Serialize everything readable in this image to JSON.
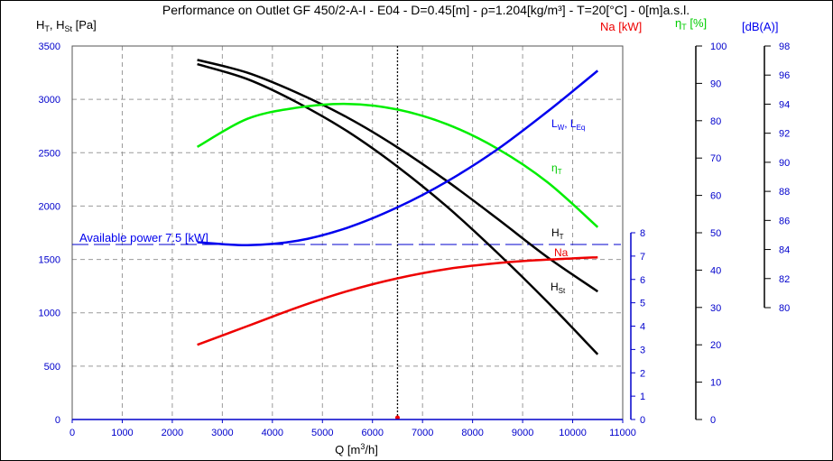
{
  "chart_data": {
    "type": "line",
    "title": "Performance on Outlet GF 450/2-A-I - E04 - D=0.45[m] - ρ=1.204[kg/m³] - T=20[°C] - 0[m]a.s.l.",
    "xlabel": {
      "main": "Q [m",
      "sup": "3",
      "tail": "/h]"
    },
    "ylabel": {
      "a": "H",
      "a_sub": "T",
      "sep": ", H",
      "b_sub": "St",
      "tail": " [Pa]"
    },
    "axis_headers": {
      "power": "Na [kW]",
      "eff": {
        "main": "η",
        "sub": "T",
        "tail": " [%]"
      },
      "sound": "[dB(A)]"
    },
    "x_axis": {
      "min": 0,
      "max": 11000,
      "ticks": [
        0,
        1000,
        2000,
        3000,
        4000,
        5000,
        6000,
        7000,
        8000,
        9000,
        10000,
        11000
      ],
      "tick_labels": [
        "0",
        "1000",
        "2000",
        "3000",
        "4000",
        "5000",
        "6000",
        "7000",
        "8000",
        "9000",
        "10000",
        "11000"
      ]
    },
    "y_axis": {
      "min": 0,
      "max": 3500,
      "ticks": [
        0,
        500,
        1000,
        1500,
        2000,
        2500,
        3000,
        3500
      ],
      "tick_labels": [
        "0",
        "500",
        "1000",
        "1500",
        "2000",
        "2500",
        "3000",
        "3500"
      ]
    },
    "power_axis": {
      "min": 0,
      "max": 8,
      "ticks": [
        0,
        1,
        2,
        3,
        4,
        5,
        6,
        7,
        8
      ],
      "tick_labels": [
        "0",
        "1",
        "2",
        "3",
        "4",
        "5",
        "6",
        "7",
        "8"
      ]
    },
    "eff_axis": {
      "min": 0,
      "max": 100,
      "ticks": [
        0,
        10,
        20,
        30,
        40,
        50,
        60,
        70,
        80,
        90,
        100
      ],
      "tick_labels": [
        "0",
        "10",
        "20",
        "30",
        "40",
        "50",
        "60",
        "70",
        "80",
        "90",
        "100"
      ]
    },
    "sound_axis": {
      "min": 80,
      "max": 98,
      "ticks": [
        80,
        82,
        84,
        86,
        88,
        90,
        92,
        94,
        96,
        98
      ],
      "tick_labels": [
        "80",
        "82",
        "84",
        "86",
        "88",
        "90",
        "92",
        "94",
        "96",
        "98"
      ]
    },
    "grid": true,
    "available_power": {
      "label": "Available power 7.5 [kW]",
      "value_kw": 7.5
    },
    "operating_point": {
      "q": 6500,
      "h": 0
    },
    "series": [
      {
        "key": "HT",
        "name": "H",
        "name_sub": "T",
        "color": "#000000",
        "axis": "y",
        "x": [
          2500,
          3500,
          4500,
          5500,
          6500,
          7500,
          8500,
          9500,
          10500
        ],
        "y": [
          3370,
          3250,
          3060,
          2830,
          2550,
          2230,
          1880,
          1520,
          1200
        ]
      },
      {
        "key": "HSt",
        "name": "H",
        "name_sub": "St",
        "color": "#000000",
        "axis": "y",
        "x": [
          2500,
          3500,
          4500,
          5500,
          6500,
          7500,
          8500,
          9500,
          10500
        ],
        "y": [
          3330,
          3190,
          2970,
          2700,
          2370,
          1990,
          1560,
          1100,
          610
        ]
      },
      {
        "key": "eta",
        "name": "η",
        "name_sub": "T",
        "color": "#00ee00",
        "axis": "eff",
        "x": [
          2500,
          3500,
          4500,
          5500,
          6500,
          7500,
          8500,
          9500,
          10500
        ],
        "y": [
          73,
          80.5,
          83.5,
          84.5,
          83,
          79,
          72.5,
          63.5,
          51.5
        ]
      },
      {
        "key": "Na",
        "name": "Na",
        "name_sub": "",
        "color": "#ee0000",
        "axis": "power",
        "x": [
          2500,
          3500,
          4500,
          5500,
          6500,
          7500,
          8500,
          9500,
          10500
        ],
        "y": [
          3.2,
          4.0,
          4.8,
          5.5,
          6.05,
          6.45,
          6.7,
          6.85,
          6.95
        ]
      },
      {
        "key": "L",
        "name": "L",
        "name_sub": "W",
        "name_sep": ", L",
        "name_sub2": "Eq",
        "color": "#0000ee",
        "axis": "sound",
        "x": [
          2500,
          3500,
          4500,
          5500,
          6500,
          7500,
          8500,
          9500,
          10500
        ],
        "y": [
          84.5,
          84.3,
          84.6,
          85.5,
          86.9,
          88.7,
          90.9,
          93.5,
          96.3
        ]
      }
    ]
  }
}
